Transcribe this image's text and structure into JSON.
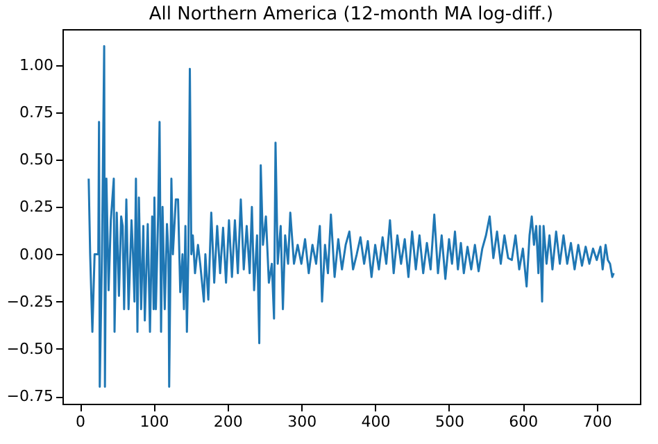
{
  "chart_data": {
    "type": "line",
    "title": "All Northern America (12-month MA log-diff.)",
    "x": [
      12,
      14,
      17,
      20,
      25,
      26,
      27,
      30,
      33,
      34,
      36,
      39,
      42,
      46,
      47,
      50,
      53,
      56,
      58,
      60,
      63,
      66,
      70,
      72,
      74,
      76,
      78,
      80,
      83,
      86,
      88,
      92,
      95,
      98,
      100,
      101,
      103,
      106,
      108,
      110,
      112,
      115,
      118,
      120,
      121,
      124,
      126,
      130,
      133,
      136,
      139,
      141,
      143,
      145,
      147,
      149,
      151,
      153,
      156,
      160,
      163,
      168,
      170,
      174,
      178,
      182,
      186,
      190,
      194,
      198,
      202,
      206,
      210,
      214,
      218,
      222,
      226,
      230,
      233,
      236,
      240,
      243,
      245,
      248,
      252,
      256,
      260,
      263,
      265,
      268,
      272,
      275,
      278,
      282,
      285,
      290,
      295,
      300,
      305,
      310,
      315,
      320,
      325,
      328,
      332,
      336,
      340,
      345,
      350,
      355,
      360,
      365,
      370,
      375,
      380,
      385,
      390,
      395,
      400,
      405,
      410,
      415,
      420,
      425,
      430,
      435,
      440,
      445,
      450,
      455,
      460,
      465,
      470,
      475,
      480,
      485,
      490,
      495,
      500,
      504,
      508,
      512,
      516,
      520,
      525,
      530,
      535,
      540,
      545,
      550,
      555,
      560,
      565,
      570,
      575,
      580,
      585,
      590,
      595,
      600,
      605,
      609,
      612,
      615,
      618,
      621,
      623,
      626,
      628,
      632,
      636,
      640,
      645,
      650,
      655,
      660,
      665,
      670,
      675,
      680,
      685,
      690,
      695,
      700,
      705,
      708,
      712,
      715,
      718,
      721,
      723
    ],
    "series": [
      {
        "color": "#1f77b4",
        "values": [
          0.4,
          0,
          -0.41,
          0,
          0,
          0.7,
          -0.7,
          0,
          1.1,
          -0.7,
          0.4,
          -0.19,
          0.18,
          0.4,
          -0.41,
          0.22,
          -0.22,
          0.2,
          0.15,
          -0.29,
          0.29,
          -0.29,
          0.18,
          0,
          -0.25,
          0.4,
          -0.41,
          0.3,
          -0.29,
          0.15,
          -0.35,
          0.16,
          -0.41,
          0.2,
          -0.29,
          0.3,
          -0.29,
          0.2,
          0.7,
          -0.41,
          0.25,
          -0.29,
          0.16,
          0,
          -0.7,
          0.4,
          0,
          0.29,
          0.29,
          -0.2,
          0,
          -0.29,
          0.15,
          -0.41,
          0,
          0.98,
          0,
          0.1,
          -0.1,
          0.05,
          -0.05,
          -0.25,
          0,
          -0.24,
          0.22,
          -0.15,
          0.15,
          -0.1,
          0.14,
          -0.15,
          0.18,
          -0.12,
          0.18,
          -0.1,
          0.29,
          -0.08,
          0.15,
          -0.1,
          0.25,
          -0.19,
          0.1,
          -0.47,
          0.47,
          0.05,
          0.2,
          -0.15,
          -0.05,
          -0.34,
          0.59,
          -0.05,
          0.15,
          -0.29,
          0.1,
          -0.05,
          0.22,
          -0.05,
          0.05,
          -0.05,
          0.08,
          -0.1,
          0.05,
          -0.05,
          0.15,
          -0.25,
          0.05,
          -0.1,
          0.21,
          -0.12,
          0.08,
          -0.08,
          0.05,
          0.12,
          -0.08,
          0,
          0.09,
          -0.05,
          0.07,
          -0.12,
          0.05,
          -0.08,
          0.09,
          -0.05,
          0.18,
          -0.1,
          0.1,
          -0.05,
          0.08,
          -0.12,
          0.12,
          -0.08,
          0.1,
          -0.1,
          0.06,
          -0.08,
          0.21,
          -0.1,
          0.1,
          -0.13,
          0.08,
          -0.05,
          0.12,
          -0.08,
          0.06,
          -0.1,
          0.04,
          -0.08,
          0.05,
          -0.09,
          0.03,
          0.1,
          0.2,
          -0.02,
          0.12,
          -0.05,
          0.1,
          -0.02,
          -0.03,
          0.1,
          -0.08,
          0.03,
          -0.17,
          0.1,
          0.2,
          0.05,
          0.15,
          -0.1,
          0.15,
          -0.25,
          0.15,
          -0.05,
          0.1,
          -0.08,
          0.12,
          -0.05,
          0.1,
          -0.05,
          0.06,
          -0.08,
          0.05,
          -0.06,
          0.04,
          -0.05,
          0.03,
          -0.03,
          0.04,
          -0.08,
          0.05,
          -0.03,
          -0.05,
          -0.12,
          -0.1
        ]
      }
    ],
    "xlim": [
      -23.5,
      758.5
    ],
    "ylim": [
      -0.79,
      1.19
    ],
    "xticks": [
      0,
      100,
      200,
      300,
      400,
      500,
      600,
      700
    ],
    "yticks": [
      {
        "value": -0.75,
        "label": "−0.75"
      },
      {
        "value": -0.5,
        "label": "−0.50"
      },
      {
        "value": -0.25,
        "label": "−0.25"
      },
      {
        "value": 0,
        "label": "0.00"
      },
      {
        "value": 0.25,
        "label": "0.25"
      },
      {
        "value": 0.5,
        "label": "0.50"
      },
      {
        "value": 0.75,
        "label": "0.75"
      },
      {
        "value": 1,
        "label": "1.00"
      }
    ],
    "grid": false
  }
}
